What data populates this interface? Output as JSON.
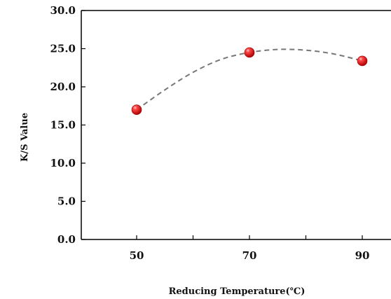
{
  "chart_data": {
    "type": "scatter",
    "title": "",
    "xlabel": "Reducing Temperature(℃)",
    "ylabel": "K/S Value",
    "x_ticks": [
      "50",
      "70",
      "90"
    ],
    "y_ticks": [
      "0.0",
      "5.0",
      "10.0",
      "15.0",
      "20.0",
      "25.0",
      "30.0"
    ],
    "xlim": [
      40,
      90
    ],
    "ylim": [
      0,
      30
    ],
    "grid": false,
    "legend": "none",
    "series": [
      {
        "points": [
          {
            "x": 50,
            "y": 17.0
          },
          {
            "x": 70,
            "y": 24.5
          },
          {
            "x": 90,
            "y": 23.4
          }
        ],
        "marker_color": "#e21a1a",
        "trend_line": {
          "style": "dashed",
          "color": "#777777",
          "points": [
            {
              "x": 50,
              "y": 17.0
            },
            {
              "x": 55,
              "y": 19.6
            },
            {
              "x": 60,
              "y": 21.9
            },
            {
              "x": 65,
              "y": 23.6
            },
            {
              "x": 70,
              "y": 24.5
            },
            {
              "x": 75,
              "y": 24.9
            },
            {
              "x": 80,
              "y": 24.8
            },
            {
              "x": 85,
              "y": 24.3
            },
            {
              "x": 90,
              "y": 23.4
            }
          ]
        }
      }
    ]
  }
}
